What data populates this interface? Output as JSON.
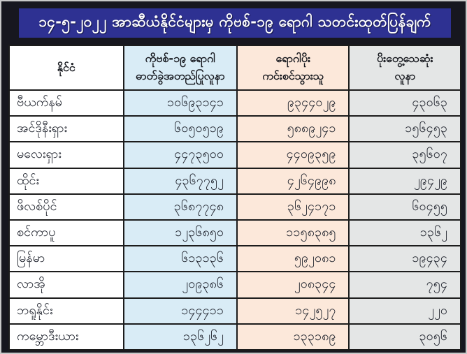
{
  "page": {
    "title": "၁၄-၅-၂၀၂၂ အာဆီယံနိုင်ငံများမှ ကိုဗစ်-၁၉ ရောဂါ သတင်းထုတ်ပြန်ချက်"
  },
  "colors": {
    "title_bar": "#2e3192",
    "frame_background": "#17171f",
    "cases_column": "#d9ecf6",
    "recovered_column": "#fce8da",
    "deaths_column": "#e4e6e6",
    "grid_border": "#1c1c1c",
    "title_text": "#ffffff"
  },
  "table": {
    "headers": {
      "country": "နိုင်ငံ",
      "cases_line1": "ကိုဗစ်-၁၉ ရောဂါ",
      "cases_line2": "ဓာတ်ခွဲအတည်ပြုလူနာ",
      "recovered_line1": "ရောဂါပိုး",
      "recovered_line2": "ကင်းစင်သွားသူ",
      "deaths_line1": "ပိုးတွေ့သေဆုံး",
      "deaths_line2": "လူနာ"
    },
    "rows": [
      {
        "country": "ဗီယက်နမ်",
        "cases": "၁၀၆၉၃၁၄၁",
        "recovered": "၉၃၄၄၀၂၉",
        "deaths": "၄၃၀၆၃"
      },
      {
        "country": "အင်ဒိုနီးရှား",
        "cases": "၆၀၅၀၅၁၉",
        "recovered": "၅၈၈၉၂၄၁",
        "deaths": "၁၅၆၄၅၃"
      },
      {
        "country": "မလေးရှား",
        "cases": "၄၄၇၃၅၀၀",
        "recovered": "၄၄၀၉၃၅၉",
        "deaths": "၃၅၆၀၇"
      },
      {
        "country": "ထိုင်း",
        "cases": "၄၃၆၇၇၅၂",
        "recovered": "၄၂၆၄၉၉၈",
        "deaths": "၂၉၄၂၉"
      },
      {
        "country": "ဖိလစ်ပိုင်",
        "cases": "၃၆၈၇၇၄၈",
        "recovered": "၃၆၂၄၁၇၁",
        "deaths": "၆၀၄၅၅"
      },
      {
        "country": "စင်ကာပူ",
        "cases": "၁၂၃၆၈၅၀",
        "recovered": "၁၁၅၈၃၈၅",
        "deaths": "၁၃၆၂"
      },
      {
        "country": "မြန်မာ",
        "cases": "၆၁၃၁၃၆",
        "recovered": "၅၉၂၀၈၁",
        "deaths": "၁၉၄၃၄"
      },
      {
        "country": "လာအို",
        "cases": "၂၀၉၃၈၆",
        "recovered": "၂၀၈၃၄၄",
        "deaths": "၇၅၄"
      },
      {
        "country": "ဘရူနိုင်း",
        "cases": "၁၄၄၄၁၁",
        "recovered": "၁၄၂၅၂၇",
        "deaths": "၂၂၀"
      },
      {
        "country": "ကမ္ဘောဒီးယား",
        "cases": "၁၃၆၂၆၂",
        "recovered": "၁၃၃၁၈၉",
        "deaths": "၃၀၅၆"
      }
    ]
  }
}
